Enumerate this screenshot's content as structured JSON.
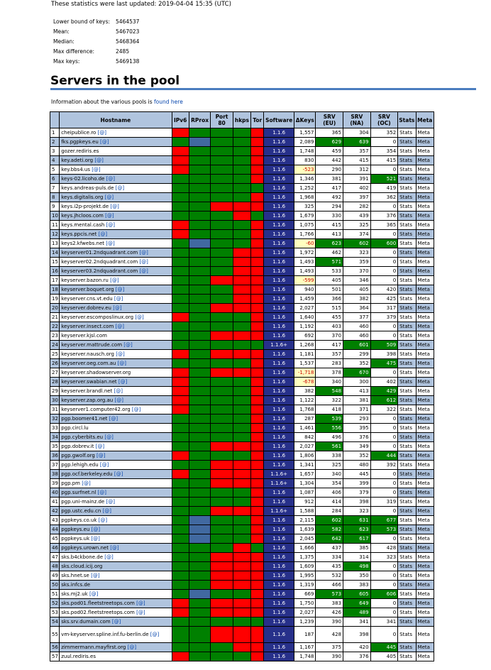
{
  "updated": "These statistics were last updated: 2019-04-04 15:35 (UTC)",
  "stats": [
    {
      "label": "Lower bound of keys:",
      "value": "5464537"
    },
    {
      "label": "Mean:",
      "value": "5467023"
    },
    {
      "label": "Median:",
      "value": "5468364"
    },
    {
      "label": "Max difference:",
      "value": "2485"
    },
    {
      "label": "Max keys:",
      "value": "5469138"
    }
  ],
  "section_title": "Servers in the pool",
  "info_text": "Information about the various pools is ",
  "info_link": "found here",
  "headers": [
    "",
    "Hostname",
    "IPv6",
    "RProx",
    "Port 80",
    "hkps",
    "Tor",
    "Software",
    "ΔKeys",
    "SRV (EU)",
    "SRV (NA)",
    "SRV (OC)",
    "Stats",
    "Meta"
  ],
  "stats_label": "Stats",
  "meta_label": "Meta",
  "colors": {
    "green": "#008000",
    "red": "#ff0000",
    "blue": "#4169a0",
    "software": "#27308a",
    "header": "#b0c4de"
  },
  "servers": [
    {
      "n": "1",
      "host": "cheipublice.ro",
      "at": "[@]",
      "flags": "rgggr",
      "sw": "1.1.6",
      "dk": "1,557",
      "eu": "365",
      "na": "304",
      "oc": "352"
    },
    {
      "n": "2",
      "host": "fks.pgpkeys.eu",
      "at": "[@]",
      "flags": "gbggr",
      "sw": "1.1.6",
      "dk": "2,089",
      "eu": "629",
      "na": "639",
      "oc": "0",
      "hi": "ab"
    },
    {
      "n": "3",
      "host": "gozer.rediris.es",
      "at": "",
      "flags": "rgggr",
      "sw": "1.1.6",
      "dk": "1,748",
      "eu": "459",
      "na": "357",
      "oc": "354"
    },
    {
      "n": "4",
      "host": "key.adeti.org",
      "at": "[@]",
      "flags": "rgggr",
      "sw": "1.1.6",
      "dk": "830",
      "eu": "442",
      "na": "415",
      "oc": "415"
    },
    {
      "n": "5",
      "host": "key.bbs4.us",
      "at": "[@]",
      "flags": "rgggr",
      "sw": "1.1.6",
      "dk": "-523",
      "eu": "290",
      "na": "312",
      "oc": "0",
      "neg": true
    },
    {
      "n": "6",
      "host": "keys-02.licoho.de",
      "at": "[@]",
      "flags": "ggggr",
      "sw": "1.1.6",
      "dk": "1,346",
      "eu": "381",
      "na": "391",
      "oc": "521",
      "hi": "c"
    },
    {
      "n": "7",
      "host": "keys.andreas-puls.de",
      "at": "[@]",
      "flags": "ggggg",
      "sw": "1.1.6",
      "dk": "1,252",
      "eu": "417",
      "na": "402",
      "oc": "419"
    },
    {
      "n": "8",
      "host": "keys.digitalis.org",
      "at": "[@]",
      "flags": "ggggr",
      "sw": "1.1.6",
      "dk": "1,968",
      "eu": "492",
      "na": "397",
      "oc": "362"
    },
    {
      "n": "9",
      "host": "keys.i2p-projekt.de",
      "at": "[@]",
      "flags": "ggrrr",
      "sw": "1.1.6",
      "dk": "325",
      "eu": "294",
      "na": "282",
      "oc": "0"
    },
    {
      "n": "10",
      "host": "keys.jhcloos.com",
      "at": "[@]",
      "flags": "gggrg",
      "sw": "1.1.6",
      "dk": "1,679",
      "eu": "330",
      "na": "439",
      "oc": "376"
    },
    {
      "n": "11",
      "host": "keys.mental.cash",
      "at": "[@]",
      "flags": "rgggr",
      "sw": "1.1.6",
      "dk": "1,075",
      "eu": "415",
      "na": "325",
      "oc": "365"
    },
    {
      "n": "12",
      "host": "keys.ppcis.net",
      "at": "[@]",
      "flags": "rgggr",
      "sw": "1.1.6",
      "dk": "1,766",
      "eu": "413",
      "na": "374",
      "oc": "0"
    },
    {
      "n": "13",
      "host": "keys2.kfwebs.net",
      "at": "[@]",
      "flags": "gbggr",
      "sw": "1.1.6",
      "dk": "-60",
      "eu": "623",
      "na": "602",
      "oc": "600",
      "neg": true,
      "hi": "abc"
    },
    {
      "n": "14",
      "host": "keyserver01.2ndquadrant.com",
      "at": "[@]",
      "flags": "gggrr",
      "sw": "1.1.6",
      "dk": "1,972",
      "eu": "462",
      "na": "323",
      "oc": "0"
    },
    {
      "n": "15",
      "host": "keyserver02.2ndquadrant.com",
      "at": "[@]",
      "flags": "gggrr",
      "sw": "1.1.6",
      "dk": "1,493",
      "eu": "571",
      "na": "359",
      "oc": "0",
      "hi": "a"
    },
    {
      "n": "16",
      "host": "keyserver03.2ndquadrant.com",
      "at": "[@]",
      "flags": "gggrr",
      "sw": "1.1.6",
      "dk": "1,493",
      "eu": "533",
      "na": "370",
      "oc": "0"
    },
    {
      "n": "17",
      "host": "keyserver.bazon.ru",
      "at": "[@]",
      "flags": "ggrrr",
      "sw": "1.1.6",
      "dk": "-599",
      "eu": "405",
      "na": "346",
      "oc": "0",
      "neg": true
    },
    {
      "n": "18",
      "host": "keyserver.boquet.org",
      "at": "[@]",
      "flags": "gggrr",
      "sw": "1.1.6",
      "dk": "940",
      "eu": "501",
      "na": "405",
      "oc": "420"
    },
    {
      "n": "19",
      "host": "keyserver.cns.vt.edu",
      "at": "[@]",
      "flags": "gggrr",
      "sw": "1.1.6",
      "dk": "1,459",
      "eu": "366",
      "na": "382",
      "oc": "425"
    },
    {
      "n": "20",
      "host": "keyserver.dobrev.eu",
      "at": "[@]",
      "flags": "ggrrr",
      "sw": "1.1.6",
      "dk": "2,027",
      "eu": "515",
      "na": "364",
      "oc": "317"
    },
    {
      "n": "21",
      "host": "keyserver.escomposlinux.org",
      "at": "[@]",
      "flags": "rgggr",
      "sw": "1.1.6",
      "dk": "1,640",
      "eu": "455",
      "na": "377",
      "oc": "379"
    },
    {
      "n": "22",
      "host": "keyserver.insect.com",
      "at": "[@]",
      "flags": "ggggr",
      "sw": "1.1.6",
      "dk": "1,192",
      "eu": "403",
      "na": "460",
      "oc": "0"
    },
    {
      "n": "23",
      "host": "keyserver.kjsl.com",
      "at": "",
      "flags": "ggrrr",
      "sw": "1.1.6",
      "dk": "692",
      "eu": "370",
      "na": "460",
      "oc": "0"
    },
    {
      "n": "24",
      "host": "keyserver.mattrude.com",
      "at": "[@]",
      "flags": "ggggg",
      "sw": "1.1.6+",
      "dk": "1,268",
      "eu": "417",
      "na": "601",
      "oc": "509",
      "hi": "bc"
    },
    {
      "n": "25",
      "host": "keyserver.nausch.org",
      "at": "[@]",
      "flags": "rgrrr",
      "sw": "1.1.6",
      "dk": "1,181",
      "eu": "357",
      "na": "299",
      "oc": "398"
    },
    {
      "n": "26",
      "host": "keyserver.oeg.com.au",
      "at": "[@]",
      "flags": "ggggr",
      "sw": "1.1.6",
      "dk": "1,537",
      "eu": "283",
      "na": "352",
      "oc": "475",
      "hi": "c"
    },
    {
      "n": "27",
      "host": "keyserver.shadowserver.org",
      "at": "",
      "flags": "rgrrr",
      "sw": "1.1.6",
      "dk": "-1,718",
      "eu": "378",
      "na": "670",
      "oc": "0",
      "neg": true,
      "hi": "b"
    },
    {
      "n": "28",
      "host": "keyserver.swabian.net",
      "at": "[@]",
      "flags": "rgggr",
      "sw": "1.1.6",
      "dk": "-678",
      "eu": "340",
      "na": "300",
      "oc": "402",
      "neg": true
    },
    {
      "n": "29",
      "host": "keyserver.brandl.net",
      "at": "[@]",
      "flags": "rgggr",
      "sw": "1.1.6",
      "dk": "382",
      "eu": "548",
      "na": "413",
      "oc": "429",
      "hi": "ac"
    },
    {
      "n": "30",
      "host": "keyserver.zap.org.au",
      "at": "[@]",
      "flags": "rgggr",
      "sw": "1.1.6",
      "dk": "1,122",
      "eu": "322",
      "na": "381",
      "oc": "612",
      "hi": "c"
    },
    {
      "n": "31",
      "host": "keyserver1.computer42.org",
      "at": "[@]",
      "flags": "rgggr",
      "sw": "1.1.6",
      "dk": "1,768",
      "eu": "418",
      "na": "371",
      "oc": "322"
    },
    {
      "n": "32",
      "host": "pgp.boomer41.net",
      "at": "[@]",
      "flags": "ggggr",
      "sw": "1.1.6",
      "dk": "287",
      "eu": "539",
      "na": "293",
      "oc": "0",
      "hi": "a"
    },
    {
      "n": "33",
      "host": "pgp.circl.lu",
      "at": "",
      "flags": "ggggr",
      "sw": "1.1.6",
      "dk": "1,461",
      "eu": "556",
      "na": "395",
      "oc": "0",
      "hi": "a"
    },
    {
      "n": "34",
      "host": "pgp.cyberbits.eu",
      "at": "[@]",
      "flags": "ggggr",
      "sw": "1.1.6",
      "dk": "842",
      "eu": "496",
      "na": "376",
      "oc": "0"
    },
    {
      "n": "35",
      "host": "pgp.dobrev.it",
      "at": "[@]",
      "flags": "ggrrr",
      "sw": "1.1.6",
      "dk": "2,027",
      "eu": "561",
      "na": "349",
      "oc": "0",
      "hi": "a"
    },
    {
      "n": "36",
      "host": "pgp.gwolf.org",
      "at": "[@]",
      "flags": "rgggr",
      "sw": "1.1.6",
      "dk": "1,806",
      "eu": "338",
      "na": "352",
      "oc": "444",
      "hi": "c"
    },
    {
      "n": "37",
      "host": "pgp.lehigh.edu",
      "at": "[@]",
      "flags": "ggrrr",
      "sw": "1.1.6",
      "dk": "1,341",
      "eu": "325",
      "na": "480",
      "oc": "392"
    },
    {
      "n": "38",
      "host": "pgp.ocf.berkeley.edu",
      "at": "[@]",
      "flags": "rgrrr",
      "sw": "1.1.6+",
      "dk": "1,657",
      "eu": "340",
      "na": "445",
      "oc": "0"
    },
    {
      "n": "39",
      "host": "pgp.pm",
      "at": "[@]",
      "flags": "ggrrr",
      "sw": "1.1.6+",
      "dk": "1,304",
      "eu": "354",
      "na": "399",
      "oc": "0"
    },
    {
      "n": "40",
      "host": "pgp.surfnet.nl",
      "at": "[@]",
      "flags": "ggggr",
      "sw": "1.1.6",
      "dk": "1,087",
      "eu": "406",
      "na": "379",
      "oc": "0"
    },
    {
      "n": "41",
      "host": "pgp.uni-mainz.de",
      "at": "[@]",
      "flags": "ggggr",
      "sw": "1.1.6",
      "dk": "912",
      "eu": "414",
      "na": "398",
      "oc": "319"
    },
    {
      "n": "42",
      "host": "pgp.ustc.edu.cn",
      "at": "[@]",
      "flags": "ggrrr",
      "sw": "1.1.6+",
      "dk": "1,588",
      "eu": "284",
      "na": "323",
      "oc": "0"
    },
    {
      "n": "43",
      "host": "pgpkeys.co.uk",
      "at": "[@]",
      "flags": "gbggr",
      "sw": "1.1.6",
      "dk": "2,115",
      "eu": "602",
      "na": "631",
      "oc": "677",
      "hi": "abc"
    },
    {
      "n": "44",
      "host": "pgpkeys.eu",
      "at": "[@]",
      "flags": "gbggr",
      "sw": "1.1.6",
      "dk": "1,639",
      "eu": "582",
      "na": "623",
      "oc": "573",
      "hi": "abc"
    },
    {
      "n": "45",
      "host": "pgpkeys.uk",
      "at": "[@]",
      "flags": "gbggr",
      "sw": "1.1.6",
      "dk": "2,045",
      "eu": "642",
      "na": "617",
      "oc": "0",
      "hi": "ab"
    },
    {
      "n": "46",
      "host": "pgpkeys.urown.net",
      "at": "[@]",
      "flags": "gggrg",
      "sw": "1.1.6",
      "dk": "1,666",
      "eu": "437",
      "na": "385",
      "oc": "428"
    },
    {
      "n": "47",
      "host": "sks.b4ckbone.de",
      "at": "[@]",
      "flags": "ggrrr",
      "sw": "1.1.6",
      "dk": "1,375",
      "eu": "334",
      "na": "314",
      "oc": "323"
    },
    {
      "n": "48",
      "host": "sks.cloud.icij.org",
      "at": "",
      "flags": "ggrrr",
      "sw": "1.1.6",
      "dk": "1,609",
      "eu": "435",
      "na": "498",
      "oc": "0",
      "hi": "b"
    },
    {
      "n": "49",
      "host": "sks.hnet.se",
      "at": "[@]",
      "flags": "ggrrr",
      "sw": "1.1.6",
      "dk": "1,995",
      "eu": "532",
      "na": "350",
      "oc": "0"
    },
    {
      "n": "50",
      "host": "sks.infcs.de",
      "at": "",
      "flags": "ggrrr",
      "sw": "1.1.6",
      "dk": "1,319",
      "eu": "466",
      "na": "383",
      "oc": "0"
    },
    {
      "n": "51",
      "host": "sks.mj2.uk",
      "at": "[@]",
      "flags": "gbggr",
      "sw": "1.1.6",
      "dk": "669",
      "eu": "573",
      "na": "605",
      "oc": "606",
      "hi": "abc"
    },
    {
      "n": "52",
      "host": "sks.pod01.fleetstreetops.com",
      "at": "[@]",
      "flags": "rgrrr",
      "sw": "1.1.6",
      "dk": "1,750",
      "eu": "383",
      "na": "649",
      "oc": "0",
      "hi": "b"
    },
    {
      "n": "53",
      "host": "sks.pod02.fleetstreetops.com",
      "at": "[@]",
      "flags": "rgrrr",
      "sw": "1.1.6",
      "dk": "2,027",
      "eu": "426",
      "na": "489",
      "oc": "0",
      "hi": "b"
    },
    {
      "n": "54",
      "host": "sks.srv.dumain.com",
      "at": "[@]",
      "flags": "ggggg",
      "sw": "1.1.6",
      "dk": "1,239",
      "eu": "390",
      "na": "341",
      "oc": "341"
    },
    {
      "n": "55",
      "host": "vm-keyserver.spline.inf.fu-berlin.de",
      "at": "[@]",
      "flags": "ggrrr",
      "sw": "1.1.6",
      "dk": "187",
      "eu": "428",
      "na": "398",
      "oc": "0",
      "dbl": true
    },
    {
      "n": "56",
      "host": "zimmermann.mayfirst.org",
      "at": "[@]",
      "flags": "gggrr",
      "sw": "1.1.6",
      "dk": "1,167",
      "eu": "375",
      "na": "420",
      "oc": "445",
      "hi": "c"
    },
    {
      "n": "57",
      "host": "zuul.rediris.es",
      "at": "",
      "flags": "rgggr",
      "sw": "1.1.6",
      "dk": "1,748",
      "eu": "390",
      "na": "376",
      "oc": "405"
    }
  ]
}
